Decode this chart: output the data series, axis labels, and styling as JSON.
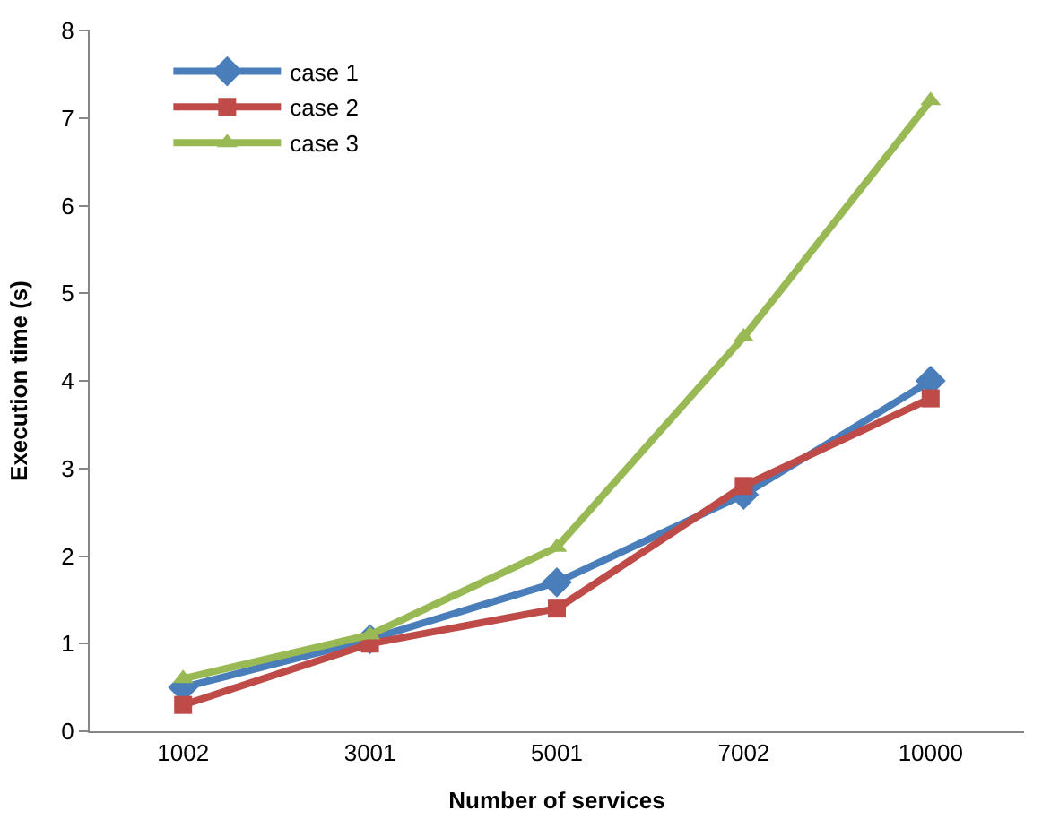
{
  "chart_data": {
    "type": "line",
    "xlabel": "Number of services",
    "ylabel": "Execution time (s)",
    "categories": [
      "1002",
      "3001",
      "5001",
      "7002",
      "10000"
    ],
    "series": [
      {
        "name": "case 1",
        "color": "#4a7ebb",
        "marker": "diamond",
        "values": [
          0.5,
          1.05,
          1.7,
          2.7,
          4.0
        ]
      },
      {
        "name": "case 2",
        "color": "#be4b48",
        "marker": "square",
        "values": [
          0.3,
          1.0,
          1.4,
          2.8,
          3.8
        ]
      },
      {
        "name": "case 3",
        "color": "#98b954",
        "marker": "triangle",
        "values": [
          0.6,
          1.1,
          2.1,
          4.5,
          7.2
        ]
      }
    ],
    "ylim": [
      0,
      8
    ],
    "yticks": [
      0,
      1,
      2,
      3,
      4,
      5,
      6,
      7,
      8
    ],
    "grid": false,
    "legend": "top left",
    "line_style": "solid"
  }
}
